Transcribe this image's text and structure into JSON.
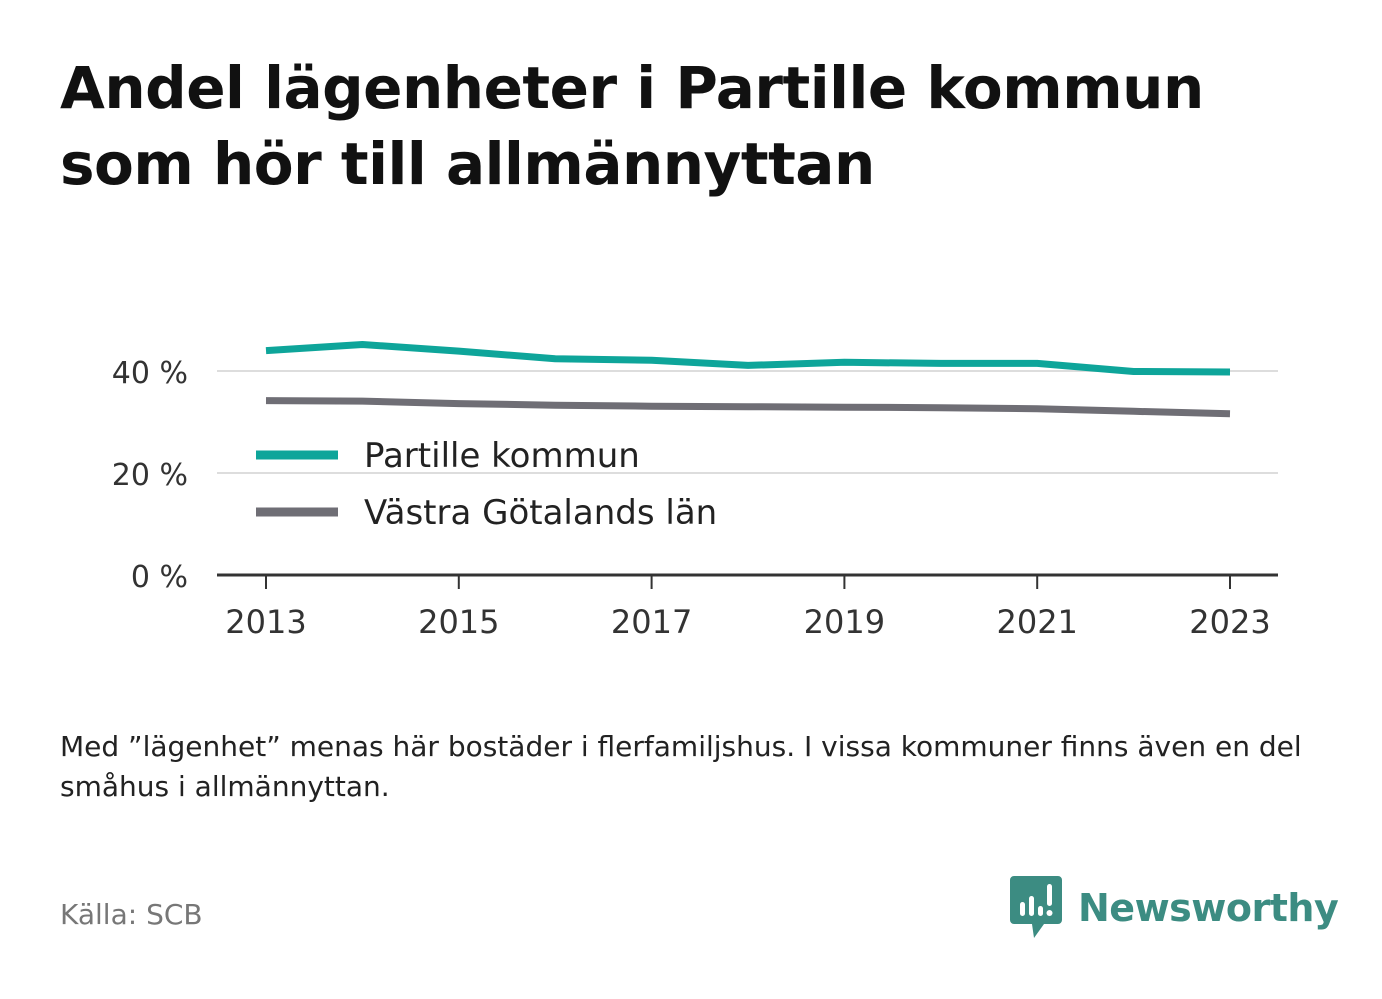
{
  "title": "Andel lägenheter i Partille kommun som hör till allmännyttan",
  "note": "Med ”lägenhet” menas här bostäder i flerfamiljshus. I vissa kommuner finns även en del småhus i allmännyttan.",
  "source": "Källa: SCB",
  "brand": {
    "name": "Newsworthy",
    "icon": "newsworthy-logo-icon"
  },
  "colors": {
    "partille": "#0ea59a",
    "vastra": "#6f6e75",
    "grid": "#dddddd",
    "axis": "#333333",
    "brand": "#3c8c82"
  },
  "chart_data": {
    "type": "line",
    "title": "Andel lägenheter i Partille kommun som hör till allmännyttan",
    "xlabel": "",
    "ylabel": "",
    "x": [
      2013,
      2014,
      2015,
      2016,
      2017,
      2018,
      2019,
      2020,
      2021,
      2022,
      2023
    ],
    "x_ticks": [
      "2013",
      "2015",
      "2017",
      "2019",
      "2021",
      "2023"
    ],
    "y_ticks": [
      "0 %",
      "20 %",
      "40 %"
    ],
    "ylim": [
      0,
      40
    ],
    "grid": true,
    "legend_position": "center-left",
    "series": [
      {
        "name": "Partille kommun",
        "color": "#0ea59a",
        "values": [
          44.0,
          45.2,
          43.9,
          42.4,
          42.1,
          41.1,
          41.7,
          41.5,
          41.5,
          39.9,
          39.8
        ]
      },
      {
        "name": "Västra Götalands län",
        "color": "#6f6e75",
        "values": [
          34.2,
          34.1,
          33.6,
          33.3,
          33.1,
          33.0,
          32.9,
          32.8,
          32.6,
          32.1,
          31.6
        ]
      }
    ]
  }
}
